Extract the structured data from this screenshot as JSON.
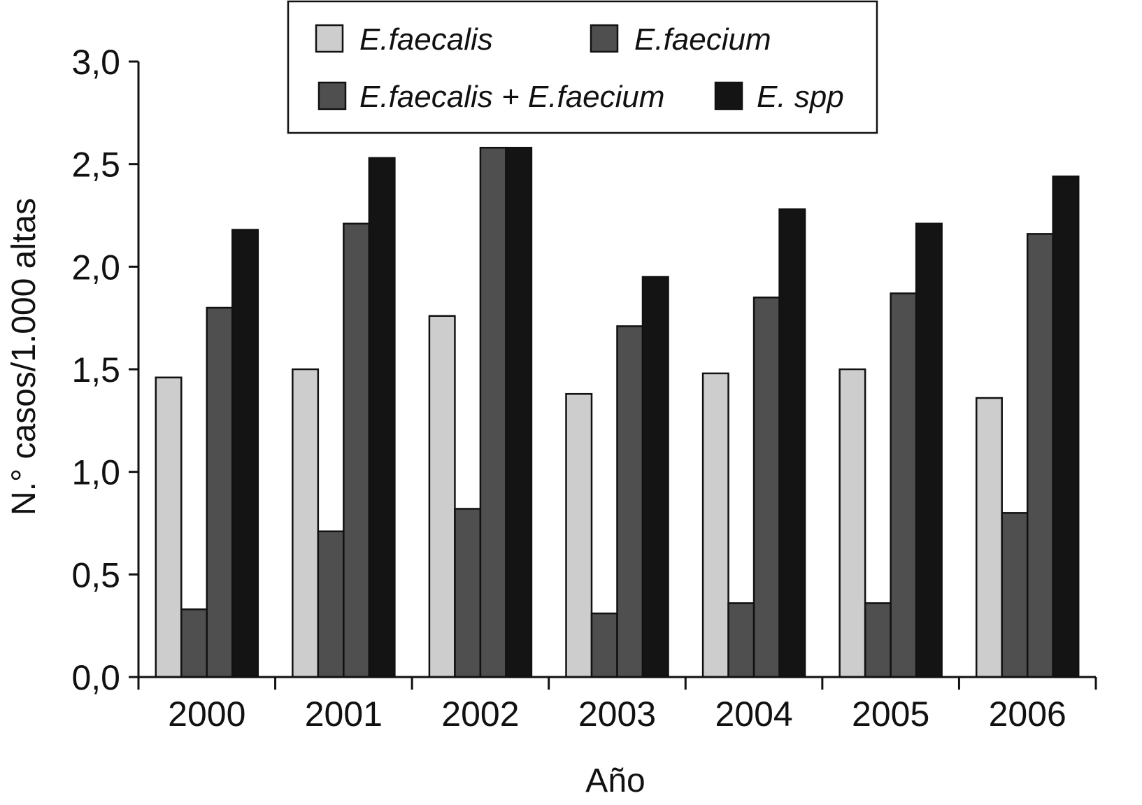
{
  "chart_data": {
    "type": "bar",
    "categories": [
      "2000",
      "2001",
      "2002",
      "2003",
      "2004",
      "2005",
      "2006"
    ],
    "series": [
      {
        "name": "E.faecalis",
        "color": "#cdcdcd",
        "values": [
          1.46,
          1.5,
          1.76,
          1.38,
          1.48,
          1.5,
          1.36
        ]
      },
      {
        "name": "E.faecium",
        "color": "#4f4f4f",
        "values": [
          0.33,
          0.71,
          0.82,
          0.31,
          0.36,
          0.36,
          0.8
        ]
      },
      {
        "name": "E.faecalis + E.faecium",
        "color": "#4f4f4f",
        "values": [
          1.8,
          2.21,
          2.58,
          1.71,
          1.85,
          1.87,
          2.16
        ]
      },
      {
        "name": "E. spp",
        "color": "#141414",
        "values": [
          2.18,
          2.53,
          2.58,
          1.95,
          2.28,
          2.21,
          2.44
        ]
      }
    ],
    "xlabel": "Año",
    "ylabel": "N.° casos/1.000 altas",
    "ylim": [
      0,
      3.0
    ],
    "yticks": [
      {
        "value": 0.0,
        "label": "0,0"
      },
      {
        "value": 0.5,
        "label": "0,5"
      },
      {
        "value": 1.0,
        "label": "1,0"
      },
      {
        "value": 1.5,
        "label": "1,5"
      },
      {
        "value": 2.0,
        "label": "2,0"
      },
      {
        "value": 2.5,
        "label": "2,5"
      },
      {
        "value": 3.0,
        "label": "3,0"
      }
    ],
    "grid": false,
    "legend_position": "top-center"
  }
}
